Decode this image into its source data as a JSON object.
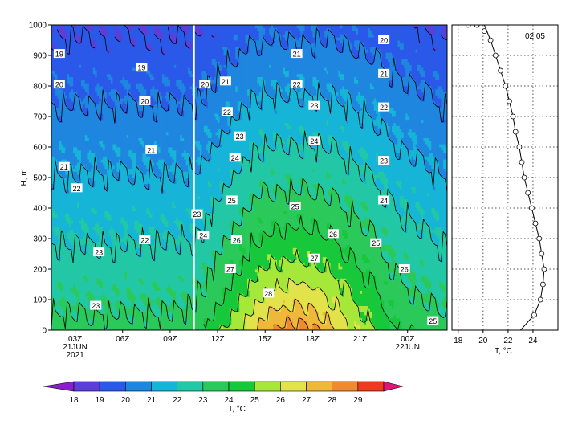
{
  "chart_data": [
    {
      "type": "heatmap",
      "ylabel": "H, m",
      "ylim": [
        0,
        1000
      ],
      "yticks": [
        "0",
        "100",
        "200",
        "300",
        "400",
        "500",
        "600",
        "700",
        "800",
        "900",
        "1000"
      ],
      "xticks": [
        {
          "label": "03Z",
          "sub1": "21JUN",
          "sub2": "2021",
          "t": 3
        },
        {
          "label": "06Z",
          "sub1": "",
          "sub2": "",
          "t": 6
        },
        {
          "label": "09Z",
          "sub1": "",
          "sub2": "",
          "t": 9
        },
        {
          "label": "12Z",
          "sub1": "",
          "sub2": "",
          "t": 12
        },
        {
          "label": "15Z",
          "sub1": "",
          "sub2": "",
          "t": 15
        },
        {
          "label": "18Z",
          "sub1": "",
          "sub2": "",
          "t": 18
        },
        {
          "label": "21Z",
          "sub1": "",
          "sub2": "",
          "t": 21
        },
        {
          "label": "00Z",
          "sub1": "22JUN",
          "sub2": "",
          "t": 24
        }
      ],
      "xlim": [
        1.5,
        26.5
      ],
      "current_time_marker": 10.5,
      "contour_labels": [
        {
          "t": 2,
          "h": 905,
          "v": "19"
        },
        {
          "t": 7.2,
          "h": 860,
          "v": "19"
        },
        {
          "t": 2,
          "h": 805,
          "v": "20"
        },
        {
          "t": 7.4,
          "h": 750,
          "v": "20"
        },
        {
          "t": 11.2,
          "h": 805,
          "v": "20"
        },
        {
          "t": 12.5,
          "h": 815,
          "v": "21"
        },
        {
          "t": 17,
          "h": 905,
          "v": "21"
        },
        {
          "t": 22.5,
          "h": 950,
          "v": "20"
        },
        {
          "t": 22.5,
          "h": 840,
          "v": "21"
        },
        {
          "t": 17,
          "h": 805,
          "v": "22"
        },
        {
          "t": 22.5,
          "h": 730,
          "v": "22"
        },
        {
          "t": 12.6,
          "h": 715,
          "v": "22"
        },
        {
          "t": 18.1,
          "h": 735,
          "v": "23"
        },
        {
          "t": 7.8,
          "h": 590,
          "v": "21"
        },
        {
          "t": 2.3,
          "h": 535,
          "v": "21"
        },
        {
          "t": 3.1,
          "h": 465,
          "v": "22"
        },
        {
          "t": 13.4,
          "h": 635,
          "v": "23"
        },
        {
          "t": 13.1,
          "h": 565,
          "v": "24"
        },
        {
          "t": 18.1,
          "h": 620,
          "v": "24"
        },
        {
          "t": 22.5,
          "h": 555,
          "v": "23"
        },
        {
          "t": 22.5,
          "h": 425,
          "v": "24"
        },
        {
          "t": 12.9,
          "h": 425,
          "v": "25"
        },
        {
          "t": 16.9,
          "h": 405,
          "v": "25"
        },
        {
          "t": 10.7,
          "h": 380,
          "v": "23"
        },
        {
          "t": 11.1,
          "h": 310,
          "v": "24"
        },
        {
          "t": 13.2,
          "h": 295,
          "v": "26"
        },
        {
          "t": 19.3,
          "h": 315,
          "v": "26"
        },
        {
          "t": 22,
          "h": 285,
          "v": "25"
        },
        {
          "t": 7.4,
          "h": 295,
          "v": "22"
        },
        {
          "t": 4.5,
          "h": 255,
          "v": "23"
        },
        {
          "t": 12.8,
          "h": 200,
          "v": "27"
        },
        {
          "t": 18.1,
          "h": 235,
          "v": "27"
        },
        {
          "t": 23.8,
          "h": 200,
          "v": "26"
        },
        {
          "t": 4.3,
          "h": 80,
          "v": "23"
        },
        {
          "t": 15.2,
          "h": 120,
          "v": "28"
        },
        {
          "t": 25.6,
          "h": 30,
          "v": "25"
        }
      ]
    },
    {
      "type": "line",
      "time_label": "02:05",
      "xlabel": "T, °C",
      "xlim": [
        17.5,
        26
      ],
      "xticks": [
        "18",
        "20",
        "22",
        "24"
      ],
      "ylim": [
        0,
        1000
      ],
      "grid": true,
      "profile": {
        "x": [
          23.0,
          24.1,
          24.6,
          24.8,
          24.9,
          24.7,
          24.5,
          24.2,
          23.9,
          23.6,
          23.3,
          23.1,
          22.9,
          22.6,
          22.4,
          22.1,
          21.8,
          21.4,
          21.0,
          20.6,
          20.1,
          19.5,
          18.8,
          18.0
        ],
        "y": [
          0,
          50,
          100,
          150,
          200,
          250,
          300,
          350,
          400,
          450,
          500,
          550,
          600,
          650,
          700,
          750,
          800,
          850,
          900,
          950,
          1000,
          1000,
          1000,
          1000
        ]
      },
      "points": {
        "x": [
          24.1,
          24.6,
          24.8,
          24.9,
          24.7,
          24.5,
          24.2,
          23.9,
          23.6,
          23.3,
          23.1,
          22.9,
          22.6,
          22.4,
          22.1,
          21.8,
          21.4,
          21.0,
          20.6,
          20.1,
          19.5,
          18.8
        ],
        "y": [
          50,
          100,
          150,
          200,
          250,
          300,
          350,
          400,
          450,
          500,
          550,
          600,
          650,
          700,
          750,
          800,
          850,
          900,
          950,
          980,
          1000,
          1000
        ]
      }
    }
  ],
  "colorbar": {
    "label": "T, °C",
    "ticks": [
      "18",
      "19",
      "20",
      "21",
      "22",
      "23",
      "24",
      "25",
      "26",
      "27",
      "28",
      "29"
    ],
    "colors": [
      "#8a1fc9",
      "#5b3fd8",
      "#2a58e8",
      "#1f86e0",
      "#16b4d6",
      "#22c8a6",
      "#2bc95a",
      "#16c83a",
      "#a6e83a",
      "#e2e34a",
      "#f0b83a",
      "#ef8a30",
      "#ee3a1e",
      "#e0157a"
    ]
  }
}
